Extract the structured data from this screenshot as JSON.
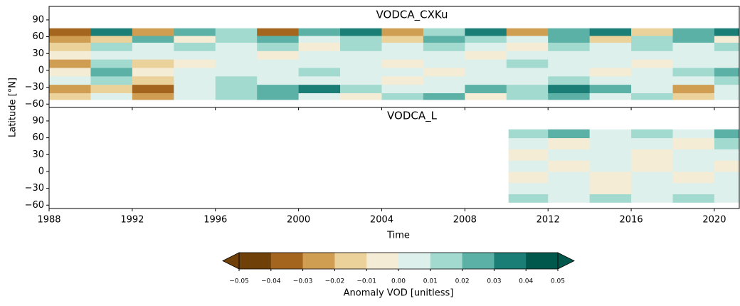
{
  "chart_data": {
    "type": "heatmap",
    "ylabel": "Latitude [°N]",
    "xlabel": "Time",
    "xlim": [
      1988,
      2021.2
    ],
    "ylim": [
      -66,
      114
    ],
    "xticks": [
      1988,
      1992,
      1996,
      2000,
      2004,
      2008,
      2012,
      2016,
      2020
    ],
    "yticks": [
      {
        "value": -60,
        "label": "−60"
      },
      {
        "value": -30,
        "label": "−30"
      },
      0,
      30,
      60,
      90
    ],
    "panels": [
      {
        "title": "VODCA_CXKu",
        "x_edges": [
          1988,
          1990,
          1992,
          1994,
          1996,
          1998,
          2000,
          2002,
          2004,
          2006,
          2008,
          2010,
          2012,
          2014,
          2016,
          2018,
          2020,
          2021.2
        ],
        "y_edges": [
          -52,
          -40,
          -25,
          -10,
          5,
          20,
          35,
          50,
          62,
          75
        ],
        "values": [
          [
            -0.015,
            0.005,
            -0.025,
            0.005,
            0.015,
            0.025,
            0.005,
            -0.005,
            0.015,
            0.025,
            -0.005,
            0.015,
            0.025,
            0.005,
            0.015,
            -0.015,
            0.005
          ],
          [
            -0.025,
            -0.015,
            -0.035,
            0.005,
            0.015,
            0.025,
            0.035,
            0.015,
            0.005,
            0.005,
            0.025,
            0.015,
            0.035,
            0.025,
            0.005,
            -0.025,
            0.005
          ],
          [
            0.005,
            0.015,
            -0.015,
            0.005,
            0.015,
            0.005,
            0.005,
            0.005,
            -0.005,
            0.005,
            0.005,
            0.005,
            0.015,
            0.005,
            0.005,
            0.005,
            0.015
          ],
          [
            -0.005,
            0.025,
            -0.005,
            0.005,
            0.005,
            0.005,
            0.015,
            0.005,
            0.005,
            -0.005,
            0.005,
            0.005,
            0.005,
            -0.005,
            0.005,
            0.015,
            0.025
          ],
          [
            -0.025,
            0.015,
            -0.015,
            -0.005,
            0.005,
            0.005,
            0.005,
            0.005,
            -0.005,
            0.005,
            0.005,
            0.015,
            0.005,
            0.005,
            -0.005,
            0.005,
            0.005
          ],
          [
            -0.005,
            0.005,
            0.005,
            0.005,
            0.005,
            -0.005,
            0.005,
            0.005,
            0.005,
            0.005,
            -0.005,
            0.005,
            0.005,
            0.005,
            0.005,
            0.005,
            0.005
          ],
          [
            -0.015,
            0.015,
            0.005,
            0.015,
            0.005,
            0.015,
            -0.005,
            0.015,
            0.005,
            0.015,
            0.005,
            -0.005,
            0.015,
            0.005,
            0.015,
            0.005,
            0.015
          ],
          [
            -0.025,
            -0.015,
            0.025,
            -0.005,
            0.015,
            0.025,
            0.005,
            0.015,
            -0.015,
            0.025,
            0.015,
            0.005,
            0.025,
            -0.015,
            0.015,
            0.025,
            -0.005
          ],
          [
            -0.035,
            0.035,
            -0.025,
            0.025,
            0.015,
            -0.035,
            0.025,
            0.035,
            -0.025,
            0.015,
            0.035,
            -0.025,
            0.025,
            0.035,
            -0.015,
            0.025,
            0.035
          ]
        ]
      },
      {
        "title": "VODCA_L",
        "x_edges": [
          2010.1,
          2012,
          2014,
          2016,
          2018,
          2020,
          2021.2
        ],
        "y_edges": [
          -55,
          -40,
          -20,
          0,
          20,
          40,
          60,
          75
        ],
        "values": [
          [
            0.015,
            0.005,
            0.015,
            0.005,
            0.015,
            0.005
          ],
          [
            0.005,
            0.005,
            -0.005,
            0.005,
            0.005,
            0.005
          ],
          [
            -0.005,
            0.005,
            -0.005,
            0.005,
            -0.005,
            0.005
          ],
          [
            0.005,
            -0.005,
            0.005,
            -0.005,
            0.005,
            -0.005
          ],
          [
            -0.005,
            0.005,
            0.005,
            -0.005,
            0.005,
            0.005
          ],
          [
            0.005,
            -0.005,
            0.005,
            0.005,
            -0.005,
            0.015
          ],
          [
            0.015,
            0.025,
            0.005,
            0.015,
            0.005,
            0.025
          ]
        ]
      }
    ],
    "colorbar": {
      "label": "Anomaly VOD [unitless]",
      "ticks": [
        {
          "value": -0.05,
          "label": "−0.05"
        },
        {
          "value": -0.04,
          "label": "−0.04"
        },
        {
          "value": -0.03,
          "label": "−0.03"
        },
        {
          "value": -0.02,
          "label": "−0.02"
        },
        {
          "value": -0.01,
          "label": "−0.01"
        },
        {
          "value": 0,
          "label": "0.00"
        },
        0.01,
        0.02,
        0.03,
        0.04,
        0.05
      ],
      "colors": [
        "#6f4109",
        "#a4661f",
        "#cf9e53",
        "#ead29a",
        "#f5ecd6",
        "#ddf0ec",
        "#a2dad0",
        "#5cb1a7",
        "#1b7e76",
        "#00574b"
      ],
      "under_color": "#6f4109",
      "over_color": "#00574b"
    }
  }
}
